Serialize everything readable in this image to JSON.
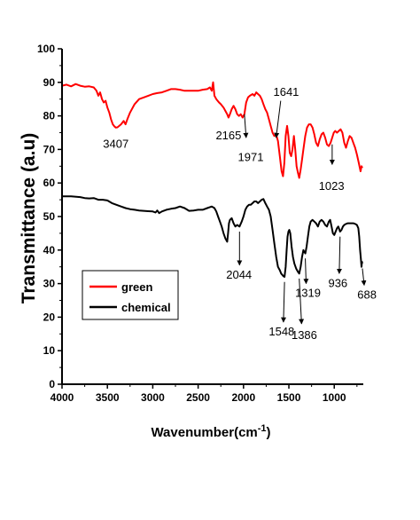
{
  "chart_data": {
    "type": "line",
    "xlabel": "Wavenumber(cm",
    "xlabel_sup": "-1",
    "xlabel_close": ")",
    "ylabel": "Transmittance (a.u)",
    "xlim": [
      4000,
      680
    ],
    "x_reversed": true,
    "ylim": [
      0,
      100
    ],
    "xticks": [
      4000,
      3500,
      3000,
      2500,
      2000,
      1500,
      1000
    ],
    "yticks": [
      0,
      10,
      20,
      30,
      40,
      50,
      60,
      70,
      80,
      90,
      100
    ],
    "grid": false,
    "legend_position": "lower-left",
    "series": [
      {
        "name": "green",
        "color": "#ff0000",
        "points": [
          [
            4000,
            89.0
          ],
          [
            3950,
            89.3
          ],
          [
            3900,
            88.8
          ],
          [
            3850,
            89.5
          ],
          [
            3800,
            89.0
          ],
          [
            3750,
            88.7
          ],
          [
            3700,
            88.8
          ],
          [
            3650,
            88.5
          ],
          [
            3620,
            87.5
          ],
          [
            3600,
            86.0
          ],
          [
            3580,
            87.0
          ],
          [
            3560,
            85.0
          ],
          [
            3540,
            84.0
          ],
          [
            3520,
            84.5
          ],
          [
            3500,
            82.5
          ],
          [
            3480,
            81.0
          ],
          [
            3460,
            79.0
          ],
          [
            3440,
            77.5
          ],
          [
            3420,
            76.8
          ],
          [
            3407,
            76.5
          ],
          [
            3390,
            76.6
          ],
          [
            3370,
            77.0
          ],
          [
            3350,
            77.5
          ],
          [
            3320,
            78.5
          ],
          [
            3300,
            77.5
          ],
          [
            3280,
            79.0
          ],
          [
            3250,
            81.0
          ],
          [
            3200,
            83.5
          ],
          [
            3150,
            85.0
          ],
          [
            3100,
            85.5
          ],
          [
            3050,
            86.0
          ],
          [
            3000,
            86.5
          ],
          [
            2950,
            86.8
          ],
          [
            2900,
            87.0
          ],
          [
            2850,
            87.5
          ],
          [
            2800,
            88.0
          ],
          [
            2750,
            88.0
          ],
          [
            2700,
            87.8
          ],
          [
            2650,
            87.5
          ],
          [
            2600,
            87.5
          ],
          [
            2550,
            87.5
          ],
          [
            2500,
            87.5
          ],
          [
            2450,
            87.8
          ],
          [
            2400,
            88.0
          ],
          [
            2370,
            88.5
          ],
          [
            2350,
            87.5
          ],
          [
            2335,
            90.0
          ],
          [
            2320,
            86.0
          ],
          [
            2300,
            85.0
          ],
          [
            2270,
            84.0
          ],
          [
            2250,
            83.5
          ],
          [
            2220,
            82.5
          ],
          [
            2200,
            81.5
          ],
          [
            2180,
            80.5
          ],
          [
            2165,
            79.5
          ],
          [
            2150,
            80.5
          ],
          [
            2130,
            82.0
          ],
          [
            2110,
            83.0
          ],
          [
            2090,
            82.0
          ],
          [
            2070,
            80.5
          ],
          [
            2050,
            80.0
          ],
          [
            2030,
            80.5
          ],
          [
            2010,
            79.5
          ],
          [
            1990,
            80.5
          ],
          [
            1971,
            84.0
          ],
          [
            1950,
            85.5
          ],
          [
            1930,
            86.0
          ],
          [
            1900,
            86.5
          ],
          [
            1880,
            86.0
          ],
          [
            1860,
            87.0
          ],
          [
            1840,
            86.5
          ],
          [
            1820,
            86.0
          ],
          [
            1800,
            85.0
          ],
          [
            1780,
            83.5
          ],
          [
            1760,
            82.0
          ],
          [
            1740,
            81.0
          ],
          [
            1720,
            79.0
          ],
          [
            1700,
            77.0
          ],
          [
            1680,
            75.0
          ],
          [
            1660,
            74.0
          ],
          [
            1641,
            74.5
          ],
          [
            1620,
            72.5
          ],
          [
            1600,
            68.0
          ],
          [
            1580,
            63.5
          ],
          [
            1565,
            62.0
          ],
          [
            1550,
            66.0
          ],
          [
            1535,
            74.0
          ],
          [
            1520,
            77.0
          ],
          [
            1505,
            74.0
          ],
          [
            1490,
            69.0
          ],
          [
            1475,
            68.0
          ],
          [
            1460,
            70.0
          ],
          [
            1445,
            74.0
          ],
          [
            1430,
            70.0
          ],
          [
            1415,
            65.0
          ],
          [
            1400,
            63.0
          ],
          [
            1386,
            61.5
          ],
          [
            1370,
            64.0
          ],
          [
            1355,
            67.0
          ],
          [
            1340,
            70.0
          ],
          [
            1320,
            74.0
          ],
          [
            1300,
            76.5
          ],
          [
            1280,
            77.5
          ],
          [
            1260,
            77.5
          ],
          [
            1240,
            76.5
          ],
          [
            1220,
            74.5
          ],
          [
            1200,
            72.0
          ],
          [
            1180,
            71.0
          ],
          [
            1160,
            73.0
          ],
          [
            1140,
            74.5
          ],
          [
            1120,
            75.0
          ],
          [
            1100,
            73.5
          ],
          [
            1080,
            71.5
          ],
          [
            1060,
            71.0
          ],
          [
            1040,
            72.0
          ],
          [
            1023,
            73.5
          ],
          [
            1005,
            75.0
          ],
          [
            990,
            75.5
          ],
          [
            970,
            75.0
          ],
          [
            950,
            75.5
          ],
          [
            930,
            76.0
          ],
          [
            910,
            75.0
          ],
          [
            890,
            72.0
          ],
          [
            870,
            70.5
          ],
          [
            850,
            72.5
          ],
          [
            830,
            74.0
          ],
          [
            810,
            73.5
          ],
          [
            790,
            72.0
          ],
          [
            770,
            70.5
          ],
          [
            750,
            68.5
          ],
          [
            730,
            66.0
          ],
          [
            710,
            63.5
          ],
          [
            700,
            65.0
          ],
          [
            690,
            64.5
          ]
        ]
      },
      {
        "name": "chemical",
        "color": "#000000",
        "points": [
          [
            4000,
            56.0
          ],
          [
            3900,
            56.0
          ],
          [
            3800,
            55.8
          ],
          [
            3750,
            55.5
          ],
          [
            3700,
            55.4
          ],
          [
            3650,
            55.5
          ],
          [
            3600,
            55.0
          ],
          [
            3550,
            55.0
          ],
          [
            3500,
            54.8
          ],
          [
            3450,
            54.0
          ],
          [
            3400,
            53.5
          ],
          [
            3350,
            53.0
          ],
          [
            3300,
            52.5
          ],
          [
            3250,
            52.2
          ],
          [
            3200,
            52.0
          ],
          [
            3150,
            51.8
          ],
          [
            3100,
            51.7
          ],
          [
            3050,
            51.6
          ],
          [
            3000,
            51.5
          ],
          [
            2970,
            51.2
          ],
          [
            2950,
            51.8
          ],
          [
            2930,
            51.0
          ],
          [
            2900,
            51.5
          ],
          [
            2850,
            52.0
          ],
          [
            2800,
            52.3
          ],
          [
            2750,
            52.5
          ],
          [
            2700,
            53.0
          ],
          [
            2650,
            52.5
          ],
          [
            2600,
            51.7
          ],
          [
            2550,
            51.8
          ],
          [
            2500,
            52.0
          ],
          [
            2450,
            52.0
          ],
          [
            2400,
            52.5
          ],
          [
            2370,
            52.8
          ],
          [
            2350,
            53.0
          ],
          [
            2320,
            52.5
          ],
          [
            2300,
            51.5
          ],
          [
            2280,
            50.0
          ],
          [
            2260,
            48.5
          ],
          [
            2240,
            47.0
          ],
          [
            2220,
            45.0
          ],
          [
            2200,
            43.5
          ],
          [
            2180,
            42.5
          ],
          [
            2170,
            45.0
          ],
          [
            2160,
            48.0
          ],
          [
            2150,
            49.0
          ],
          [
            2130,
            49.5
          ],
          [
            2110,
            48.0
          ],
          [
            2090,
            47.0
          ],
          [
            2070,
            47.5
          ],
          [
            2044,
            47.0
          ],
          [
            2020,
            48.5
          ],
          [
            2000,
            50.0
          ],
          [
            1980,
            52.0
          ],
          [
            1960,
            53.0
          ],
          [
            1940,
            53.5
          ],
          [
            1920,
            53.5
          ],
          [
            1900,
            54.0
          ],
          [
            1880,
            54.5
          ],
          [
            1860,
            54.5
          ],
          [
            1840,
            54.0
          ],
          [
            1820,
            54.5
          ],
          [
            1800,
            55.0
          ],
          [
            1780,
            55.2
          ],
          [
            1760,
            54.0
          ],
          [
            1740,
            53.0
          ],
          [
            1720,
            52.0
          ],
          [
            1700,
            50.0
          ],
          [
            1680,
            46.0
          ],
          [
            1660,
            42.0
          ],
          [
            1640,
            38.0
          ],
          [
            1620,
            35.0
          ],
          [
            1600,
            34.0
          ],
          [
            1585,
            33.0
          ],
          [
            1570,
            32.5
          ],
          [
            1560,
            32.2
          ],
          [
            1548,
            32.0
          ],
          [
            1535,
            35.0
          ],
          [
            1525,
            40.0
          ],
          [
            1515,
            44.0
          ],
          [
            1505,
            45.5
          ],
          [
            1495,
            46.0
          ],
          [
            1485,
            45.0
          ],
          [
            1470,
            41.0
          ],
          [
            1455,
            38.0
          ],
          [
            1440,
            36.0
          ],
          [
            1420,
            34.5
          ],
          [
            1400,
            33.5
          ],
          [
            1386,
            33.0
          ],
          [
            1370,
            35.0
          ],
          [
            1355,
            38.0
          ],
          [
            1340,
            40.0
          ],
          [
            1330,
            39.5
          ],
          [
            1319,
            39.0
          ],
          [
            1305,
            41.0
          ],
          [
            1290,
            44.0
          ],
          [
            1275,
            47.0
          ],
          [
            1260,
            48.5
          ],
          [
            1240,
            49.0
          ],
          [
            1220,
            48.5
          ],
          [
            1200,
            48.0
          ],
          [
            1180,
            47.0
          ],
          [
            1160,
            48.5
          ],
          [
            1140,
            49.0
          ],
          [
            1120,
            48.5
          ],
          [
            1100,
            47.5
          ],
          [
            1080,
            47.0
          ],
          [
            1060,
            48.5
          ],
          [
            1045,
            49.0
          ],
          [
            1030,
            47.0
          ],
          [
            1015,
            45.0
          ],
          [
            1000,
            44.5
          ],
          [
            985,
            45.5
          ],
          [
            970,
            46.5
          ],
          [
            955,
            47.0
          ],
          [
            936,
            45.5
          ],
          [
            920,
            46.0
          ],
          [
            905,
            47.0
          ],
          [
            890,
            47.5
          ],
          [
            870,
            47.8
          ],
          [
            850,
            48.0
          ],
          [
            830,
            48.0
          ],
          [
            810,
            48.0
          ],
          [
            790,
            48.0
          ],
          [
            770,
            47.8
          ],
          [
            750,
            47.5
          ],
          [
            735,
            46.5
          ],
          [
            725,
            44.0
          ],
          [
            715,
            40.0
          ],
          [
            705,
            37.0
          ],
          [
            700,
            35.0
          ],
          [
            695,
            36.5
          ],
          [
            690,
            36.0
          ]
        ]
      }
    ],
    "annotations": [
      {
        "text": "3407",
        "series": "green",
        "x": 3407,
        "y": 76.5,
        "tx": 3407,
        "ty": 70.5,
        "arrow": false
      },
      {
        "text": "2165",
        "series": "green",
        "x": 2165,
        "y": 79.5,
        "tx": 2165,
        "ty": 73.0,
        "arrow": false
      },
      {
        "text": "1971",
        "series": "green",
        "x": 1971,
        "y": 74.5,
        "tx": 1920,
        "ty": 66.5,
        "arrow": true,
        "head": [
          1971,
          73.5
        ],
        "tail": [
          1990,
          80.5
        ]
      },
      {
        "text": "1641",
        "series": "green",
        "x": 1641,
        "y": 74.5,
        "tx": 1530,
        "ty": 86.0,
        "arrow": true,
        "head": [
          1641,
          73.5
        ],
        "tail": [
          1590,
          84.5
        ]
      },
      {
        "text": "1023",
        "series": "green",
        "x": 1023,
        "y": 73.5,
        "tx": 1030,
        "ty": 58.0,
        "arrow": true,
        "head": [
          1023,
          65.5
        ],
        "tail": [
          1023,
          71.5
        ]
      },
      {
        "text": "2044",
        "series": "chemical",
        "x": 2044,
        "y": 47.0,
        "tx": 2050,
        "ty": 31.5,
        "arrow": true,
        "head": [
          2044,
          35.5
        ],
        "tail": [
          2044,
          45.5
        ]
      },
      {
        "text": "1548",
        "series": "chemical",
        "x": 1548,
        "y": 32.0,
        "tx": 1580,
        "ty": 14.5,
        "arrow": true,
        "head": [
          1560,
          18.5
        ],
        "tail": [
          1548,
          30.5
        ]
      },
      {
        "text": "1386",
        "series": "chemical",
        "x": 1386,
        "y": 33.0,
        "tx": 1330,
        "ty": 13.5,
        "arrow": true,
        "head": [
          1360,
          18.0
        ],
        "tail": [
          1386,
          31.5
        ]
      },
      {
        "text": "1319",
        "series": "chemical",
        "x": 1319,
        "y": 39.0,
        "tx": 1290,
        "ty": 26.0,
        "arrow": true,
        "head": [
          1310,
          30.0
        ],
        "tail": [
          1319,
          37.5
        ]
      },
      {
        "text": "936",
        "series": "chemical",
        "x": 936,
        "y": 45.5,
        "tx": 960,
        "ty": 29.0,
        "arrow": true,
        "head": [
          945,
          33.0
        ],
        "tail": [
          936,
          44.0
        ]
      },
      {
        "text": "688",
        "series": "chemical",
        "x": 688,
        "y": 36.0,
        "tx": 640,
        "ty": 25.5,
        "arrow": true,
        "head": [
          670,
          29.5
        ],
        "tail": [
          690,
          34.5
        ]
      }
    ]
  }
}
